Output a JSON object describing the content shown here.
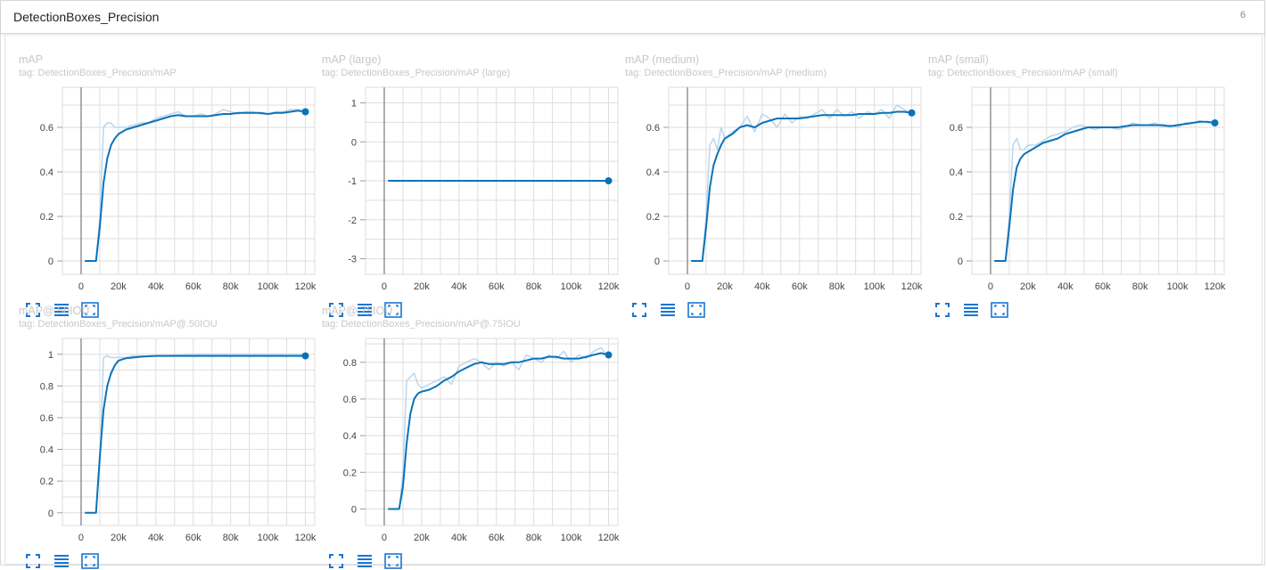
{
  "group": {
    "title": "DetectionBoxes_Precision",
    "count": "6"
  },
  "colors": {
    "line": "#0b72b9",
    "raw_line": "#b9d6ec",
    "grid": "#dedede",
    "icon": "#1976d2"
  },
  "icons": {
    "fit": "fit-domain-icon",
    "log": "log-scale-icon",
    "expand": "expand-icon"
  },
  "cards": [
    {
      "title": "mAP",
      "tag": "tag: DetectionBoxes_Precision/mAP"
    },
    {
      "title": "mAP (large)",
      "tag": "tag: DetectionBoxes_Precision/mAP (large)"
    },
    {
      "title": "mAP (medium)",
      "tag": "tag: DetectionBoxes_Precision/mAP (medium)"
    },
    {
      "title": "mAP (small)",
      "tag": "tag: DetectionBoxes_Precision/mAP (small)"
    },
    {
      "title": "mAP@.50IOU",
      "tag": "tag: DetectionBoxes_Precision/mAP@.50IOU"
    },
    {
      "title": "mAP@.75IOU",
      "tag": "tag: DetectionBoxes_Precision/mAP@.75IOU"
    }
  ],
  "chart_data": [
    {
      "type": "line",
      "title": "mAP",
      "xlim": [
        -10000,
        125000
      ],
      "ylim": [
        -0.06,
        0.78
      ],
      "xticks": [
        0,
        20000,
        40000,
        60000,
        80000,
        100000,
        120000
      ],
      "xtick_labels": [
        "0",
        "20k",
        "40k",
        "60k",
        "80k",
        "100k",
        "120k"
      ],
      "yticks": [
        0,
        0.2,
        0.4,
        0.6
      ],
      "ytick_labels": [
        "0",
        "0.2",
        "0.4",
        "0.6"
      ],
      "series": [
        {
          "role": "raw",
          "x": [
            2000,
            8000,
            10000,
            12000,
            14000,
            16000,
            18000,
            20000,
            24000,
            28000,
            32000,
            36000,
            40000,
            44000,
            48000,
            52000,
            56000,
            60000,
            64000,
            68000,
            72000,
            76000,
            80000,
            84000,
            88000,
            92000,
            96000,
            100000,
            104000,
            108000,
            112000,
            116000,
            120000
          ],
          "y": [
            0,
            0,
            0.2,
            0.6,
            0.62,
            0.62,
            0.6,
            0.6,
            0.6,
            0.61,
            0.62,
            0.62,
            0.64,
            0.65,
            0.66,
            0.67,
            0.65,
            0.65,
            0.66,
            0.65,
            0.66,
            0.68,
            0.67,
            0.66,
            0.67,
            0.67,
            0.66,
            0.66,
            0.67,
            0.67,
            0.68,
            0.68,
            0.67
          ]
        },
        {
          "role": "smoothed",
          "x": [
            2000,
            6000,
            8000,
            10000,
            12000,
            14000,
            16000,
            18000,
            20000,
            24000,
            28000,
            32000,
            36000,
            40000,
            44000,
            48000,
            52000,
            56000,
            60000,
            64000,
            68000,
            72000,
            76000,
            80000,
            84000,
            88000,
            92000,
            96000,
            100000,
            104000,
            108000,
            112000,
            116000,
            120000
          ],
          "y": [
            0,
            0,
            0,
            0.15,
            0.35,
            0.46,
            0.52,
            0.55,
            0.57,
            0.59,
            0.6,
            0.61,
            0.62,
            0.63,
            0.64,
            0.65,
            0.655,
            0.65,
            0.65,
            0.65,
            0.65,
            0.655,
            0.66,
            0.66,
            0.665,
            0.665,
            0.665,
            0.665,
            0.66,
            0.665,
            0.665,
            0.67,
            0.675,
            0.67
          ]
        }
      ]
    },
    {
      "type": "line",
      "title": "mAP (large)",
      "xlim": [
        -10000,
        125000
      ],
      "ylim": [
        -3.4,
        1.4
      ],
      "xticks": [
        0,
        20000,
        40000,
        60000,
        80000,
        100000,
        120000
      ],
      "xtick_labels": [
        "0",
        "20k",
        "40k",
        "60k",
        "80k",
        "100k",
        "120k"
      ],
      "yticks": [
        1,
        0,
        -1,
        -2,
        -3
      ],
      "ytick_labels": [
        "1",
        "0",
        "-1",
        "-2",
        "-3"
      ],
      "series": [
        {
          "role": "raw",
          "x": [
            2000,
            120000
          ],
          "y": [
            -1,
            -1
          ]
        },
        {
          "role": "smoothed",
          "x": [
            2000,
            120000
          ],
          "y": [
            -1,
            -1
          ]
        }
      ]
    },
    {
      "type": "line",
      "title": "mAP (medium)",
      "xlim": [
        -10000,
        125000
      ],
      "ylim": [
        -0.06,
        0.78
      ],
      "xticks": [
        0,
        20000,
        40000,
        60000,
        80000,
        100000,
        120000
      ],
      "xtick_labels": [
        "0",
        "20k",
        "40k",
        "60k",
        "80k",
        "100k",
        "120k"
      ],
      "yticks": [
        0,
        0.2,
        0.4,
        0.6
      ],
      "ytick_labels": [
        "0",
        "0.2",
        "0.4",
        "0.6"
      ],
      "series": [
        {
          "role": "raw",
          "x": [
            2000,
            8000,
            10000,
            12000,
            14000,
            16000,
            18000,
            20000,
            24000,
            28000,
            32000,
            36000,
            40000,
            44000,
            48000,
            52000,
            56000,
            60000,
            64000,
            68000,
            72000,
            76000,
            80000,
            84000,
            88000,
            92000,
            96000,
            100000,
            104000,
            108000,
            112000,
            116000,
            120000
          ],
          "y": [
            0,
            0,
            0.2,
            0.52,
            0.55,
            0.5,
            0.6,
            0.55,
            0.58,
            0.6,
            0.65,
            0.58,
            0.66,
            0.64,
            0.6,
            0.66,
            0.62,
            0.65,
            0.64,
            0.66,
            0.68,
            0.64,
            0.68,
            0.65,
            0.67,
            0.64,
            0.67,
            0.66,
            0.68,
            0.64,
            0.7,
            0.68,
            0.66
          ]
        },
        {
          "role": "smoothed",
          "x": [
            2000,
            6000,
            8000,
            10000,
            12000,
            14000,
            16000,
            18000,
            20000,
            24000,
            28000,
            32000,
            36000,
            40000,
            44000,
            48000,
            52000,
            56000,
            60000,
            64000,
            68000,
            72000,
            76000,
            80000,
            84000,
            88000,
            92000,
            96000,
            100000,
            104000,
            108000,
            112000,
            116000,
            120000
          ],
          "y": [
            0,
            0,
            0,
            0.15,
            0.33,
            0.43,
            0.48,
            0.52,
            0.55,
            0.57,
            0.6,
            0.61,
            0.6,
            0.62,
            0.63,
            0.64,
            0.64,
            0.64,
            0.64,
            0.645,
            0.65,
            0.655,
            0.655,
            0.655,
            0.655,
            0.655,
            0.66,
            0.66,
            0.66,
            0.665,
            0.665,
            0.67,
            0.67,
            0.665
          ]
        }
      ]
    },
    {
      "type": "line",
      "title": "mAP (small)",
      "xlim": [
        -10000,
        125000
      ],
      "ylim": [
        -0.06,
        0.78
      ],
      "xticks": [
        0,
        20000,
        40000,
        60000,
        80000,
        100000,
        120000
      ],
      "xtick_labels": [
        "0",
        "20k",
        "40k",
        "60k",
        "80k",
        "100k",
        "120k"
      ],
      "yticks": [
        0,
        0.2,
        0.4,
        0.6
      ],
      "ytick_labels": [
        "0",
        "0.2",
        "0.4",
        "0.6"
      ],
      "series": [
        {
          "role": "raw",
          "x": [
            2000,
            8000,
            10000,
            12000,
            14000,
            16000,
            18000,
            20000,
            24000,
            28000,
            32000,
            36000,
            40000,
            44000,
            48000,
            52000,
            56000,
            60000,
            64000,
            68000,
            72000,
            76000,
            80000,
            84000,
            88000,
            92000,
            96000,
            100000,
            104000,
            108000,
            112000,
            116000,
            120000
          ],
          "y": [
            0,
            0,
            0.2,
            0.52,
            0.55,
            0.5,
            0.5,
            0.52,
            0.52,
            0.54,
            0.56,
            0.57,
            0.58,
            0.6,
            0.61,
            0.6,
            0.59,
            0.6,
            0.6,
            0.59,
            0.6,
            0.62,
            0.61,
            0.61,
            0.62,
            0.6,
            0.61,
            0.6,
            0.62,
            0.62,
            0.63,
            0.62,
            0.62
          ]
        },
        {
          "role": "smoothed",
          "x": [
            2000,
            6000,
            8000,
            10000,
            12000,
            14000,
            16000,
            18000,
            20000,
            24000,
            28000,
            32000,
            36000,
            40000,
            44000,
            48000,
            52000,
            56000,
            60000,
            64000,
            68000,
            72000,
            76000,
            80000,
            84000,
            88000,
            92000,
            96000,
            100000,
            104000,
            108000,
            112000,
            116000,
            120000
          ],
          "y": [
            0,
            0,
            0,
            0.15,
            0.32,
            0.42,
            0.46,
            0.48,
            0.49,
            0.51,
            0.53,
            0.54,
            0.55,
            0.57,
            0.58,
            0.59,
            0.6,
            0.6,
            0.6,
            0.6,
            0.6,
            0.605,
            0.61,
            0.61,
            0.61,
            0.61,
            0.61,
            0.605,
            0.61,
            0.615,
            0.62,
            0.625,
            0.625,
            0.62
          ]
        }
      ]
    },
    {
      "type": "line",
      "title": "mAP@.50IOU",
      "xlim": [
        -10000,
        125000
      ],
      "ylim": [
        -0.08,
        1.1
      ],
      "xticks": [
        0,
        20000,
        40000,
        60000,
        80000,
        100000,
        120000
      ],
      "xtick_labels": [
        "0",
        "20k",
        "40k",
        "60k",
        "80k",
        "100k",
        "120k"
      ],
      "yticks": [
        0,
        0.2,
        0.4,
        0.6,
        0.8,
        1
      ],
      "ytick_labels": [
        "0",
        "0.2",
        "0.4",
        "0.6",
        "0.8",
        "1"
      ],
      "series": [
        {
          "role": "raw",
          "x": [
            2000,
            8000,
            10000,
            12000,
            14000,
            16000,
            20000,
            24000,
            28000,
            32000,
            40000,
            60000,
            80000,
            100000,
            120000
          ],
          "y": [
            0,
            0,
            0.3,
            0.98,
            0.99,
            0.98,
            0.98,
            0.98,
            0.99,
            0.99,
            0.99,
            1,
            1,
            1,
            1
          ]
        },
        {
          "role": "smoothed",
          "x": [
            2000,
            6000,
            8000,
            10000,
            12000,
            14000,
            16000,
            18000,
            20000,
            24000,
            28000,
            32000,
            40000,
            60000,
            80000,
            100000,
            120000
          ],
          "y": [
            0,
            0,
            0,
            0.35,
            0.65,
            0.8,
            0.88,
            0.93,
            0.96,
            0.975,
            0.98,
            0.985,
            0.99,
            0.99,
            0.99,
            0.99,
            0.99
          ]
        }
      ]
    },
    {
      "type": "line",
      "title": "mAP@.75IOU",
      "xlim": [
        -10000,
        125000
      ],
      "ylim": [
        -0.09,
        0.93
      ],
      "xticks": [
        0,
        20000,
        40000,
        60000,
        80000,
        100000,
        120000
      ],
      "xtick_labels": [
        "0",
        "20k",
        "40k",
        "60k",
        "80k",
        "100k",
        "120k"
      ],
      "yticks": [
        0,
        0.2,
        0.4,
        0.6,
        0.8
      ],
      "ytick_labels": [
        "0",
        "0.2",
        "0.4",
        "0.6",
        "0.8"
      ],
      "series": [
        {
          "role": "raw",
          "x": [
            2000,
            8000,
            10000,
            12000,
            14000,
            16000,
            18000,
            20000,
            24000,
            28000,
            32000,
            36000,
            40000,
            44000,
            48000,
            52000,
            56000,
            60000,
            64000,
            68000,
            72000,
            76000,
            80000,
            84000,
            88000,
            92000,
            96000,
            100000,
            104000,
            108000,
            112000,
            116000,
            120000
          ],
          "y": [
            0,
            0,
            0.2,
            0.7,
            0.72,
            0.74,
            0.68,
            0.66,
            0.68,
            0.7,
            0.72,
            0.68,
            0.78,
            0.8,
            0.82,
            0.8,
            0.76,
            0.8,
            0.78,
            0.8,
            0.76,
            0.84,
            0.82,
            0.8,
            0.84,
            0.82,
            0.86,
            0.8,
            0.84,
            0.82,
            0.86,
            0.88,
            0.82
          ]
        },
        {
          "role": "smoothed",
          "x": [
            2000,
            6000,
            8000,
            10000,
            12000,
            14000,
            16000,
            18000,
            20000,
            24000,
            28000,
            32000,
            36000,
            40000,
            44000,
            48000,
            52000,
            56000,
            60000,
            64000,
            68000,
            72000,
            76000,
            80000,
            84000,
            88000,
            92000,
            96000,
            100000,
            104000,
            108000,
            112000,
            116000,
            120000
          ],
          "y": [
            0,
            0,
            0,
            0.12,
            0.36,
            0.52,
            0.6,
            0.63,
            0.64,
            0.65,
            0.67,
            0.7,
            0.72,
            0.75,
            0.77,
            0.79,
            0.8,
            0.79,
            0.79,
            0.79,
            0.8,
            0.8,
            0.81,
            0.82,
            0.82,
            0.83,
            0.83,
            0.82,
            0.82,
            0.82,
            0.83,
            0.84,
            0.85,
            0.84
          ]
        }
      ]
    }
  ]
}
